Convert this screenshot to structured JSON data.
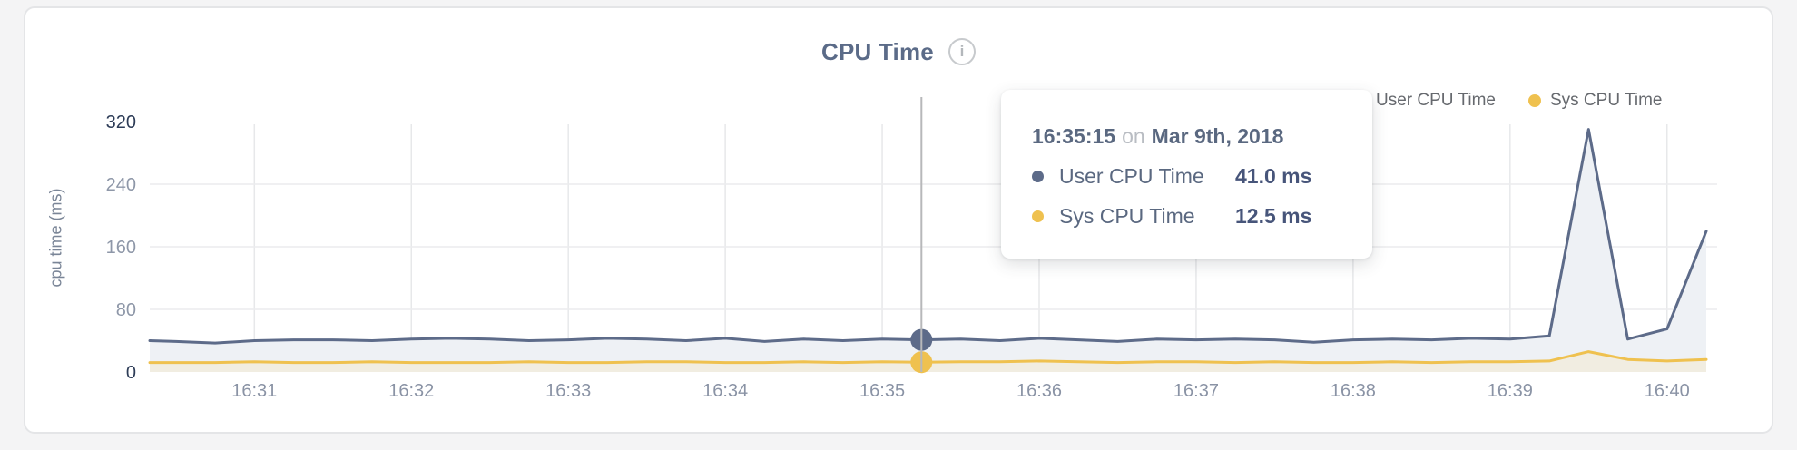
{
  "page": {
    "background": "#f4f4f5"
  },
  "card": {
    "background": "#ffffff",
    "border_color": "#e4e5e7"
  },
  "header": {
    "title": "CPU Time",
    "info_icon_glyph": "i"
  },
  "legend": {
    "position": "top-right",
    "items": [
      {
        "label": "User CPU Time",
        "color": "#5d6b89"
      },
      {
        "label": "Sys CPU Time",
        "color": "#efc14f"
      }
    ]
  },
  "tooltip": {
    "time": "16:35:15",
    "connector": "on",
    "date": "Mar 9th, 2018",
    "rows": [
      {
        "label": "User CPU Time",
        "value": "41.0 ms",
        "color": "#5d6b89"
      },
      {
        "label": "Sys CPU Time",
        "value": "12.5 ms",
        "color": "#efc14f"
      }
    ]
  },
  "chart_data": {
    "type": "line",
    "title": "CPU Time",
    "xlabel": "",
    "ylabel": "cpu time (ms)",
    "unit": "ms",
    "ylim": [
      0,
      320
    ],
    "grid": true,
    "legend_position": "top-right",
    "y_ticks": [
      {
        "label": "0",
        "value": 0,
        "emphasis": true
      },
      {
        "label": "80",
        "value": 80,
        "emphasis": false
      },
      {
        "label": "160",
        "value": 160,
        "emphasis": false
      },
      {
        "label": "240",
        "value": 240,
        "emphasis": false
      },
      {
        "label": "320",
        "value": 320,
        "emphasis": true
      }
    ],
    "x_ticks": [
      "16:31",
      "16:32",
      "16:33",
      "16:34",
      "16:35",
      "16:36",
      "16:37",
      "16:38",
      "16:39",
      "16:40"
    ],
    "x_domain": [
      "16:30:20",
      "16:40:15"
    ],
    "x": [
      "16:30:20",
      "16:30:30",
      "16:30:45",
      "16:31:00",
      "16:31:15",
      "16:31:30",
      "16:31:45",
      "16:32:00",
      "16:32:15",
      "16:32:30",
      "16:32:45",
      "16:33:00",
      "16:33:15",
      "16:33:30",
      "16:33:45",
      "16:34:00",
      "16:34:15",
      "16:34:30",
      "16:34:45",
      "16:35:00",
      "16:35:15",
      "16:35:30",
      "16:35:45",
      "16:36:00",
      "16:36:15",
      "16:36:30",
      "16:36:45",
      "16:37:00",
      "16:37:15",
      "16:37:30",
      "16:37:45",
      "16:38:00",
      "16:38:15",
      "16:38:30",
      "16:38:45",
      "16:39:00",
      "16:39:15",
      "16:39:30",
      "16:39:45",
      "16:40:00",
      "16:40:15"
    ],
    "series": [
      {
        "name": "User CPU Time",
        "color": "#5d6b89",
        "fill": "#eef1f5",
        "values": [
          40,
          39,
          37,
          40,
          41,
          41,
          40,
          42,
          43,
          42,
          40,
          41,
          43,
          42,
          40,
          43,
          39,
          42,
          40,
          42,
          41,
          42,
          40,
          43,
          41,
          39,
          42,
          41,
          42,
          41,
          38,
          41,
          42,
          41,
          43,
          42,
          46,
          310,
          42,
          55,
          180
        ]
      },
      {
        "name": "Sys CPU Time",
        "color": "#efc14f",
        "fill": "#f1ede1",
        "values": [
          12,
          12,
          12,
          13,
          12,
          12,
          13,
          12,
          12,
          12,
          13,
          12,
          12,
          13,
          13,
          12,
          12,
          13,
          12,
          13,
          12.5,
          13,
          13,
          14,
          13,
          12,
          13,
          13,
          12,
          13,
          12,
          12,
          13,
          12,
          13,
          13,
          14,
          26,
          16,
          14,
          16
        ]
      }
    ],
    "hover": {
      "index": 20,
      "time": "16:35:15",
      "date": "Mar 9th, 2018",
      "user_ms": 41.0,
      "sys_ms": 12.5
    }
  }
}
